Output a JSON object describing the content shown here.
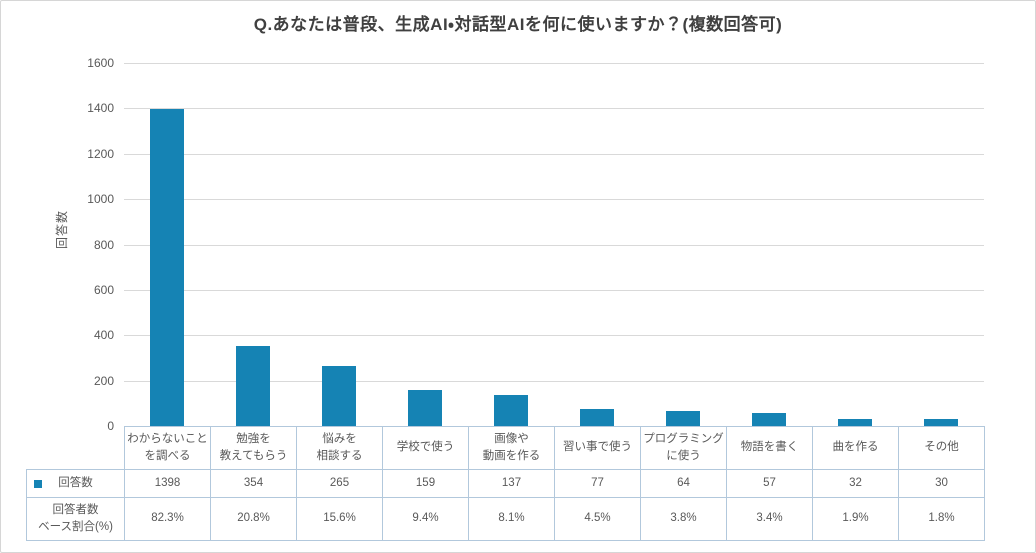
{
  "title": "Q.あなたは普段、生成AI・対話型AIを何に使いますか？(複数回答可)",
  "colors": {
    "bar": "#1583b4",
    "gridline": "#d9d9d9",
    "axis_text": "#595959",
    "title_text": "#404040",
    "table_border": "#b2c8dc",
    "frame_border": "#d6d6d6"
  },
  "chart_data": {
    "type": "bar",
    "title": "Q.あなたは普段、生成AI・対話型AIを何に使いますか？(複数回答可)",
    "xlabel": "",
    "ylabel": "回答数",
    "ylim": [
      0,
      1600
    ],
    "ytick_step": 200,
    "yticks": [
      0,
      200,
      400,
      600,
      800,
      1000,
      1200,
      1400,
      1600
    ],
    "grid": true,
    "legend_position": "table-left",
    "categories": [
      "わからないこと\nを調べる",
      "勉強を\n教えてもらう",
      "悩みを\n相談する",
      "学校で使う",
      "画像や\n動画を作る",
      "習い事で使う",
      "プログラミング\nに使う",
      "物語を書く",
      "曲を作る",
      "その他"
    ],
    "series": [
      {
        "name": "回答数",
        "values": [
          1398,
          354,
          265,
          159,
          137,
          77,
          64,
          57,
          32,
          30
        ]
      },
      {
        "name": "回答者数\nベース割合(%)",
        "values": [
          "82.3%",
          "20.8%",
          "15.6%",
          "9.4%",
          "8.1%",
          "4.5%",
          "3.8%",
          "3.4%",
          "1.9%",
          "1.8%"
        ]
      }
    ]
  }
}
